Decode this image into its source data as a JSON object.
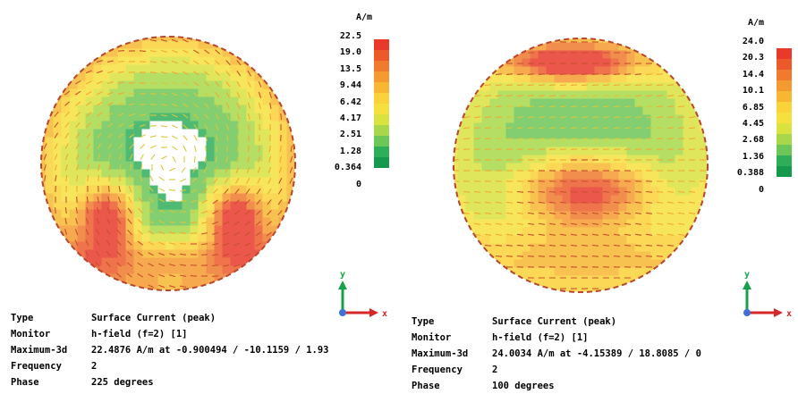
{
  "panels": [
    {
      "unit": "A/m",
      "scale_ticks": [
        "22.5",
        "19.0",
        "13.5",
        "9.44",
        "6.42",
        "4.17",
        "2.51",
        "1.28",
        "0.364",
        "0"
      ],
      "info": [
        {
          "key": "Type",
          "value": "Surface Current (peak)"
        },
        {
          "key": "Monitor",
          "value": "h-field (f=2) [1]"
        },
        {
          "key": "Maximum-3d",
          "value": "22.4876 A/m at -0.900494 / -10.1159 / 1.93"
        },
        {
          "key": "Frequency",
          "value": "2"
        },
        {
          "key": "Phase",
          "value": "225 degrees"
        }
      ],
      "axis_labels": {
        "y": "y",
        "x": "x"
      }
    },
    {
      "unit": "A/m",
      "scale_ticks": [
        "24.0",
        "20.3",
        "14.4",
        "10.1",
        "6.85",
        "4.45",
        "2.68",
        "1.36",
        "0.388",
        "0"
      ],
      "info": [
        {
          "key": "Type",
          "value": "Surface Current (peak)"
        },
        {
          "key": "Monitor",
          "value": "h-field (f=2) [1]"
        },
        {
          "key": "Maximum-3d",
          "value": "24.0034 A/m at -4.15389 / 18.8085 / 0"
        },
        {
          "key": "Frequency",
          "value": "2"
        },
        {
          "key": "Phase",
          "value": "100 degrees"
        }
      ],
      "axis_labels": {
        "y": "y",
        "x": "x"
      }
    }
  ],
  "colormap": [
    "#e8392a",
    "#ec5a2c",
    "#f07a2e",
    "#f49a30",
    "#f7b733",
    "#fad23a",
    "#f6e03e",
    "#d9e23f",
    "#a8d84a",
    "#6cc658",
    "#2fae5a",
    "#15994d"
  ]
}
